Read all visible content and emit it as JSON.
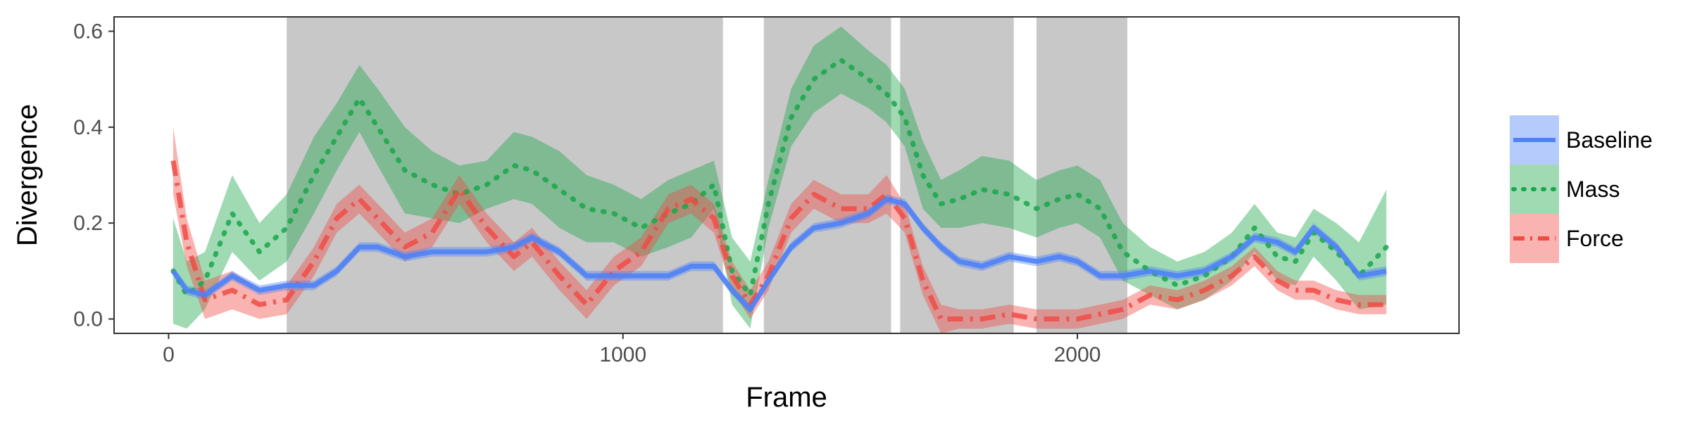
{
  "chart_data": {
    "type": "line",
    "title": "",
    "xlabel": "Frame",
    "ylabel": "Divergence",
    "xlim": [
      -120,
      2840
    ],
    "ylim": [
      -0.03,
      0.63
    ],
    "xticks": [
      0,
      1000,
      2000
    ],
    "xtick_labels": [
      "0",
      "1000",
      "2000"
    ],
    "yticks": [
      0.0,
      0.2,
      0.4,
      0.6
    ],
    "ytick_labels": [
      "0.0",
      "0.2",
      "0.4",
      "0.6"
    ],
    "grid": false,
    "legend_position": "right",
    "shaded_regions": [
      [
        260,
        1220
      ],
      [
        1310,
        1590
      ],
      [
        1610,
        1860
      ],
      [
        1910,
        2110
      ]
    ],
    "shaded_color": "#c8c8c8",
    "series": [
      {
        "name": "Baseline",
        "color": "#4f82f6",
        "style": "solid",
        "x": [
          10,
          40,
          80,
          140,
          200,
          260,
          320,
          370,
          420,
          460,
          520,
          580,
          640,
          700,
          760,
          800,
          860,
          920,
          980,
          1040,
          1100,
          1150,
          1200,
          1240,
          1280,
          1320,
          1370,
          1420,
          1480,
          1540,
          1580,
          1620,
          1660,
          1700,
          1740,
          1790,
          1850,
          1910,
          1960,
          2000,
          2050,
          2100,
          2160,
          2220,
          2280,
          2340,
          2390,
          2440,
          2480,
          2520,
          2570,
          2620,
          2680
        ],
        "y": [
          0.1,
          0.06,
          0.05,
          0.09,
          0.06,
          0.07,
          0.07,
          0.1,
          0.15,
          0.15,
          0.13,
          0.14,
          0.14,
          0.14,
          0.15,
          0.17,
          0.14,
          0.09,
          0.09,
          0.09,
          0.09,
          0.11,
          0.11,
          0.06,
          0.02,
          0.08,
          0.15,
          0.19,
          0.2,
          0.22,
          0.25,
          0.24,
          0.19,
          0.15,
          0.12,
          0.11,
          0.13,
          0.12,
          0.13,
          0.12,
          0.09,
          0.09,
          0.1,
          0.09,
          0.1,
          0.13,
          0.17,
          0.16,
          0.14,
          0.19,
          0.15,
          0.09,
          0.1
        ]
      },
      {
        "name": "Mass",
        "color": "#1aa64b",
        "style": "dotted",
        "x": [
          10,
          40,
          80,
          140,
          200,
          260,
          320,
          370,
          420,
          460,
          520,
          580,
          640,
          700,
          760,
          800,
          860,
          920,
          980,
          1040,
          1100,
          1150,
          1200,
          1240,
          1280,
          1320,
          1370,
          1420,
          1480,
          1540,
          1580,
          1620,
          1660,
          1700,
          1740,
          1790,
          1850,
          1910,
          1960,
          2000,
          2050,
          2100,
          2160,
          2220,
          2280,
          2340,
          2390,
          2440,
          2480,
          2520,
          2570,
          2620,
          2680
        ],
        "y": [
          0.1,
          0.05,
          0.08,
          0.22,
          0.14,
          0.19,
          0.3,
          0.38,
          0.46,
          0.4,
          0.31,
          0.28,
          0.26,
          0.28,
          0.32,
          0.31,
          0.27,
          0.23,
          0.22,
          0.19,
          0.22,
          0.24,
          0.28,
          0.1,
          0.05,
          0.24,
          0.42,
          0.5,
          0.54,
          0.5,
          0.47,
          0.42,
          0.3,
          0.24,
          0.25,
          0.27,
          0.26,
          0.23,
          0.25,
          0.26,
          0.23,
          0.14,
          0.1,
          0.07,
          0.09,
          0.13,
          0.19,
          0.13,
          0.12,
          0.18,
          0.14,
          0.09,
          0.15
        ]
      },
      {
        "name": "Force",
        "color": "#f04b45",
        "style": "dashdot",
        "x": [
          10,
          40,
          80,
          140,
          200,
          260,
          320,
          370,
          420,
          460,
          520,
          580,
          640,
          700,
          760,
          800,
          860,
          920,
          980,
          1040,
          1100,
          1150,
          1200,
          1240,
          1280,
          1320,
          1370,
          1420,
          1480,
          1540,
          1580,
          1620,
          1660,
          1700,
          1740,
          1790,
          1850,
          1910,
          1960,
          2000,
          2050,
          2100,
          2160,
          2220,
          2280,
          2340,
          2390,
          2440,
          2480,
          2520,
          2570,
          2620,
          2680
        ],
        "y": [
          0.33,
          0.16,
          0.04,
          0.06,
          0.03,
          0.04,
          0.12,
          0.21,
          0.25,
          0.21,
          0.15,
          0.18,
          0.27,
          0.19,
          0.13,
          0.16,
          0.09,
          0.03,
          0.1,
          0.14,
          0.23,
          0.25,
          0.21,
          0.09,
          0.03,
          0.09,
          0.21,
          0.26,
          0.23,
          0.23,
          0.26,
          0.21,
          0.08,
          0.0,
          0.0,
          0.0,
          0.01,
          0.0,
          0.0,
          0.0,
          0.01,
          0.02,
          0.05,
          0.04,
          0.06,
          0.09,
          0.13,
          0.08,
          0.06,
          0.06,
          0.04,
          0.03,
          0.03
        ]
      }
    ],
    "ribbon_halfwidth": {
      "Baseline": [
        0.01,
        0.01,
        0.01,
        0.01,
        0.01,
        0.01,
        0.01,
        0.01,
        0.01,
        0.01,
        0.01,
        0.01,
        0.01,
        0.01,
        0.01,
        0.01,
        0.01,
        0.01,
        0.01,
        0.01,
        0.01,
        0.01,
        0.01,
        0.01,
        0.01,
        0.01,
        0.01,
        0.01,
        0.01,
        0.01,
        0.01,
        0.01,
        0.01,
        0.01,
        0.01,
        0.01,
        0.01,
        0.01,
        0.01,
        0.01,
        0.01,
        0.01,
        0.01,
        0.01,
        0.01,
        0.01,
        0.01,
        0.01,
        0.01,
        0.01,
        0.01,
        0.01,
        0.01
      ],
      "Mass": [
        0.11,
        0.07,
        0.06,
        0.08,
        0.06,
        0.07,
        0.08,
        0.07,
        0.07,
        0.08,
        0.09,
        0.07,
        0.06,
        0.05,
        0.07,
        0.07,
        0.08,
        0.07,
        0.06,
        0.06,
        0.07,
        0.07,
        0.05,
        0.07,
        0.07,
        0.05,
        0.06,
        0.07,
        0.07,
        0.06,
        0.06,
        0.06,
        0.07,
        0.05,
        0.06,
        0.07,
        0.07,
        0.06,
        0.06,
        0.06,
        0.06,
        0.06,
        0.05,
        0.05,
        0.05,
        0.05,
        0.05,
        0.05,
        0.05,
        0.05,
        0.06,
        0.07,
        0.12
      ],
      "Force": [
        0.07,
        0.05,
        0.04,
        0.04,
        0.03,
        0.03,
        0.03,
        0.03,
        0.03,
        0.03,
        0.03,
        0.03,
        0.03,
        0.03,
        0.03,
        0.03,
        0.03,
        0.03,
        0.03,
        0.03,
        0.03,
        0.03,
        0.03,
        0.03,
        0.03,
        0.03,
        0.03,
        0.03,
        0.03,
        0.03,
        0.04,
        0.03,
        0.03,
        0.03,
        0.02,
        0.02,
        0.02,
        0.02,
        0.02,
        0.02,
        0.02,
        0.02,
        0.02,
        0.02,
        0.02,
        0.02,
        0.02,
        0.02,
        0.02,
        0.02,
        0.02,
        0.02,
        0.02
      ]
    }
  }
}
